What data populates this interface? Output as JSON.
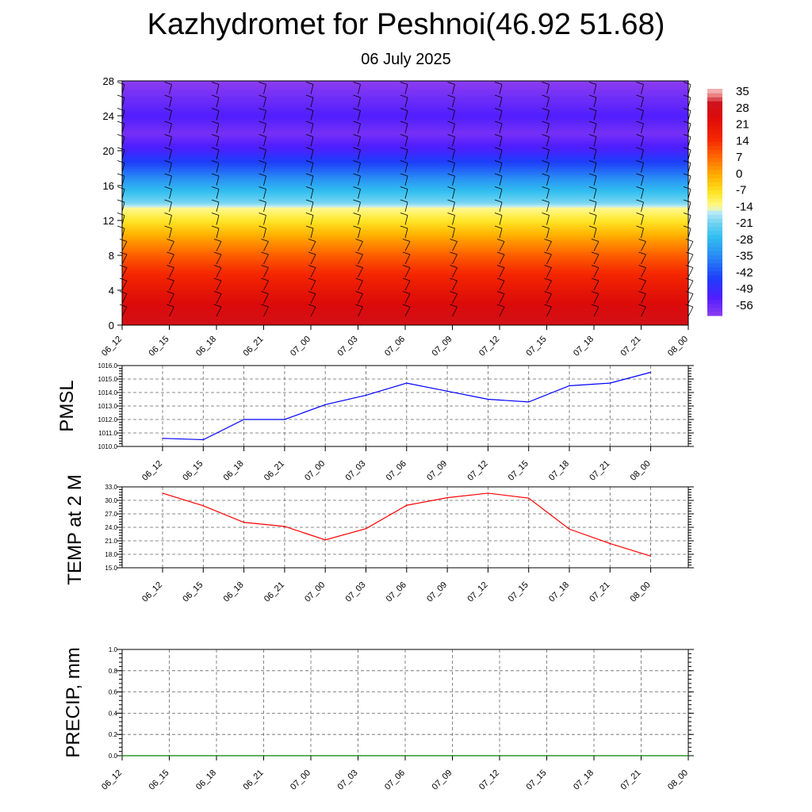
{
  "title": "Kazhydromet for Peshnoi(46.92 51.68)",
  "subtitle": "06 July 2025",
  "chart_data": [
    {
      "type": "heatmap",
      "name": "temperature-height-section",
      "x_ticks": [
        "06_12",
        "06_15",
        "06_18",
        "06_21",
        "07_00",
        "07_03",
        "07_06",
        "07_09",
        "07_12",
        "07_15",
        "07_18",
        "07_21",
        "08_00"
      ],
      "y_ticks": [
        0,
        4,
        8,
        12,
        16,
        20,
        24,
        28
      ],
      "ylim": [
        0,
        28
      ],
      "colorbar": {
        "labels": [
          35,
          28,
          21,
          14,
          7,
          0,
          -7,
          -14,
          -21,
          -28,
          -35,
          -42,
          -49,
          -56
        ],
        "range": [
          -60,
          38
        ]
      },
      "profile": [
        {
          "height": 0,
          "temp": 30
        },
        {
          "height": 2,
          "temp": 27
        },
        {
          "height": 4,
          "temp": 22
        },
        {
          "height": 6,
          "temp": 16
        },
        {
          "height": 8,
          "temp": 10
        },
        {
          "height": 10,
          "temp": 2
        },
        {
          "height": 12,
          "temp": -7
        },
        {
          "height": 13.5,
          "temp": -13
        },
        {
          "height": 14,
          "temp": -19
        },
        {
          "height": 16,
          "temp": -29
        },
        {
          "height": 18,
          "temp": -40
        },
        {
          "height": 20,
          "temp": -50
        },
        {
          "height": 22,
          "temp": -57
        },
        {
          "height": 24,
          "temp": -52
        },
        {
          "height": 26,
          "temp": -56
        },
        {
          "height": 28,
          "temp": -60
        }
      ]
    },
    {
      "type": "line",
      "name": "pmsl",
      "ylabel": "PMSL",
      "x": [
        "06_12",
        "06_15",
        "06_18",
        "06_21",
        "07_00",
        "07_03",
        "07_06",
        "07_09",
        "07_12",
        "07_15",
        "07_18",
        "07_21",
        "08_00"
      ],
      "values": [
        1010.6,
        1010.5,
        1012.0,
        1012.0,
        1013.1,
        1013.8,
        1014.7,
        1014.1,
        1013.5,
        1013.3,
        1014.5,
        1014.7,
        1015.5
      ],
      "ylim": [
        1010.0,
        1016.0
      ],
      "y_ticks": [
        "1010.0",
        "1011.0",
        "1012.0",
        "1013.0",
        "1014.0",
        "1015.0",
        "1016.0"
      ],
      "color": "#0000ff"
    },
    {
      "type": "line",
      "name": "temp2m",
      "ylabel": "TEMP at 2 M",
      "x": [
        "06_12",
        "06_15",
        "06_18",
        "06_21",
        "07_00",
        "07_03",
        "07_06",
        "07_09",
        "07_12",
        "07_15",
        "07_18",
        "07_21",
        "08_00"
      ],
      "values": [
        31.6,
        28.8,
        25.1,
        24.2,
        21.2,
        23.7,
        28.9,
        30.6,
        31.6,
        30.5,
        23.6,
        20.4,
        17.6
      ],
      "ylim": [
        15.0,
        33.0
      ],
      "y_ticks": [
        "15.0",
        "18.0",
        "21.0",
        "24.0",
        "27.0",
        "30.0",
        "33.0"
      ],
      "color": "#ff0000"
    },
    {
      "type": "line",
      "name": "precip",
      "ylabel": "PRECIP, mm",
      "x_ticks": [
        "06_12",
        "06_15",
        "06_18",
        "06_21",
        "07_00",
        "07_03",
        "07_06",
        "07_09",
        "07_12",
        "07_15",
        "07_18",
        "07_21",
        "08_00"
      ],
      "values": [
        0,
        0,
        0,
        0,
        0,
        0,
        0,
        0,
        0,
        0,
        0,
        0,
        0
      ],
      "ylim": [
        0.0,
        1.0
      ],
      "y_ticks": [
        "0.0",
        "0.2",
        "0.4",
        "0.6",
        "0.8",
        "1.0"
      ],
      "color": "#008000"
    }
  ]
}
